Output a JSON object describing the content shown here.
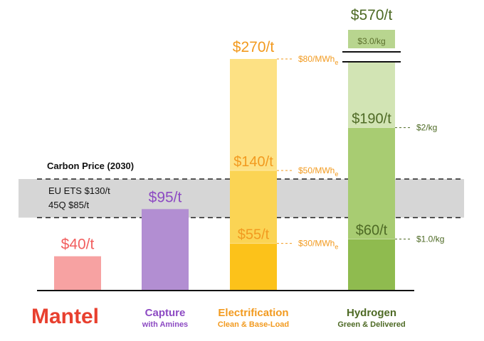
{
  "logo": "Mantel",
  "chart_data": {
    "type": "bar",
    "ylabel": "",
    "xlabel": "",
    "ylim": [
      0,
      300
    ],
    "band": {
      "title": "Carbon Price (2030)",
      "lines": [
        "EU ETS $130/t",
        "45Q $85/t"
      ],
      "upper": 130,
      "lower": 85,
      "color": "#d6d6d6"
    },
    "bars": [
      {
        "category": "",
        "subtitle": "",
        "is_logo": true,
        "color": "#f4a3a3",
        "label_color": "#f25f5f",
        "total": 40,
        "top_label": "$40/t",
        "segments": [
          {
            "from": 0,
            "to": 40,
            "color": "#f7a2a2"
          }
        ],
        "inner_labels": [],
        "side_labels": []
      },
      {
        "category": "Capture",
        "subtitle": "with Amines",
        "is_logo": false,
        "color": "#b18cd0",
        "label_color": "#8d4bc3",
        "total": 95,
        "top_label": "$95/t",
        "segments": [
          {
            "from": 0,
            "to": 95,
            "color": "#b28ed2"
          }
        ],
        "inner_labels": [],
        "side_labels": []
      },
      {
        "category": "Electrification",
        "subtitle": "Clean & Base-Load",
        "is_logo": false,
        "color": "#f3a22a",
        "label_color": "#f29a1f",
        "total": 270,
        "top_label": "$270/t",
        "segments": [
          {
            "from": 0,
            "to": 55,
            "color": "#fcc21a"
          },
          {
            "from": 55,
            "to": 140,
            "color": "#fbd454"
          },
          {
            "from": 140,
            "to": 270,
            "color": "#fde184"
          }
        ],
        "inner_labels": [
          {
            "value": 55,
            "text": "$55/t"
          },
          {
            "value": 140,
            "text": "$140/t"
          }
        ],
        "side_labels": [
          {
            "value": 270,
            "text": "$80/MWh",
            "sub": "e"
          },
          {
            "value": 140,
            "text": "$50/MWh",
            "sub": "e"
          },
          {
            "value": 55,
            "text": "$30/MWh",
            "sub": "e"
          }
        ]
      },
      {
        "category": "Hydrogen",
        "subtitle": "Green & Delivered",
        "is_logo": false,
        "color": "#5d7a2b",
        "label_color": "#4e6a25",
        "total": 570,
        "top_label": "$570/t",
        "segments": [
          {
            "from": 0,
            "to": 60,
            "color": "#8fbb4f"
          },
          {
            "from": 60,
            "to": 190,
            "color": "#a8cc72"
          },
          {
            "from": 190,
            "to": 270,
            "color": "#d2e4b4"
          }
        ],
        "break": {
          "from": 270,
          "to": 570,
          "color": "#b8d58f"
        },
        "inner_labels": [
          {
            "value": 60,
            "text": "$60/t"
          },
          {
            "value": 190,
            "text": "$190/t"
          }
        ],
        "break_label": "$3.0/kg",
        "side_labels": [
          {
            "value": 190,
            "text": "$2/kg",
            "sub": ""
          },
          {
            "value": 60,
            "text": "$1.0/kg",
            "sub": ""
          }
        ]
      }
    ]
  }
}
